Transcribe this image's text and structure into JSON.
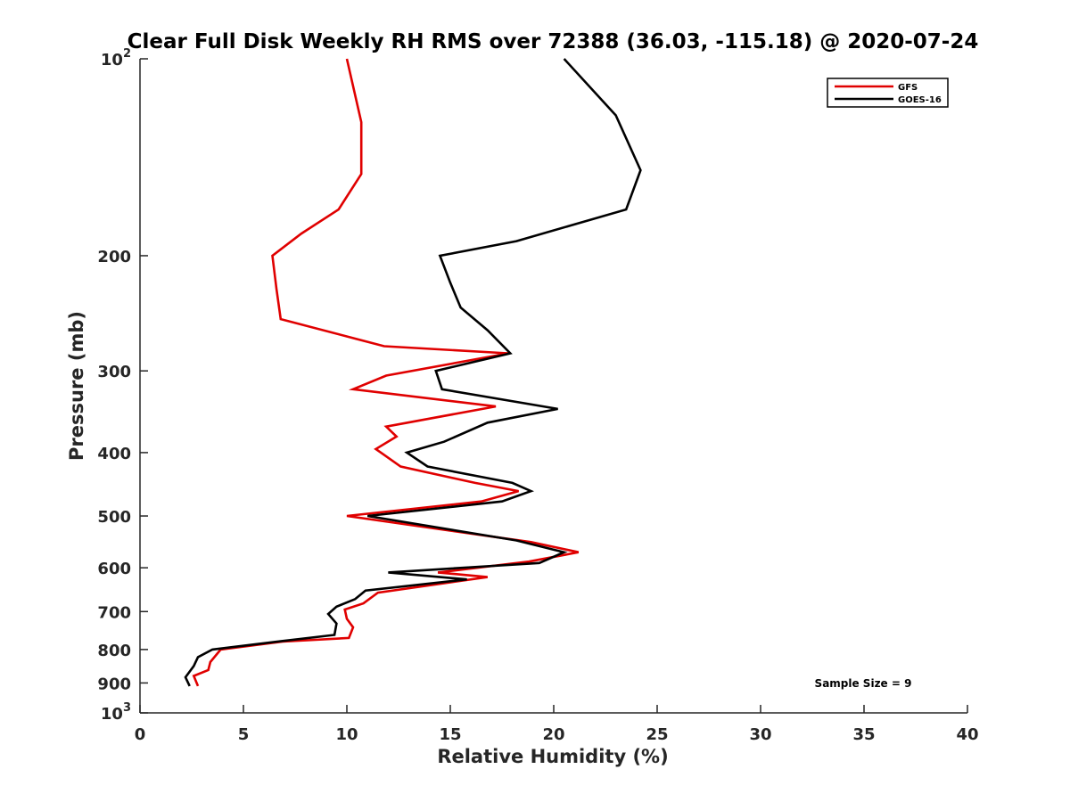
{
  "chart_data": {
    "type": "line",
    "title": "Clear Full Disk Weekly RH RMS over 72388 (36.03, -115.18) @ 2020-07-24",
    "xlabel": "Relative Humidity (%)",
    "ylabel": "Pressure (mb)",
    "xlim": [
      0,
      40
    ],
    "ylim": [
      100,
      1000
    ],
    "yscale": "log",
    "y_reversed": true,
    "x_ticks": [
      "0",
      "5",
      "10",
      "15",
      "20",
      "25",
      "30",
      "35",
      "40"
    ],
    "y_ticks": [
      {
        "value": 100,
        "label": "10",
        "sup": "2"
      },
      {
        "value": 200,
        "label": "200"
      },
      {
        "value": 300,
        "label": "300"
      },
      {
        "value": 400,
        "label": "400"
      },
      {
        "value": 500,
        "label": "500"
      },
      {
        "value": 600,
        "label": "600"
      },
      {
        "value": 700,
        "label": "700"
      },
      {
        "value": 800,
        "label": "800"
      },
      {
        "value": 900,
        "label": "900"
      },
      {
        "value": 1000,
        "label": "10",
        "sup": "3"
      }
    ],
    "legend_position": "top-right",
    "annotation": "Sample Size = 9",
    "series": [
      {
        "name": "GFS",
        "color": "#e00000",
        "points": [
          [
            10.0,
            100
          ],
          [
            10.7,
            125
          ],
          [
            10.7,
            150
          ],
          [
            9.6,
            170
          ],
          [
            7.8,
            185
          ],
          [
            6.4,
            200
          ],
          [
            6.6,
            225
          ],
          [
            6.8,
            250
          ],
          [
            11.8,
            275
          ],
          [
            17.8,
            282
          ],
          [
            11.9,
            305
          ],
          [
            10.3,
            320
          ],
          [
            17.2,
            340
          ],
          [
            11.9,
            365
          ],
          [
            12.4,
            378
          ],
          [
            11.4,
            395
          ],
          [
            12.6,
            420
          ],
          [
            16.2,
            445
          ],
          [
            18.3,
            458
          ],
          [
            16.5,
            475
          ],
          [
            10.0,
            500
          ],
          [
            18.9,
            548
          ],
          [
            21.2,
            568
          ],
          [
            18.8,
            587
          ],
          [
            14.4,
            610
          ],
          [
            16.8,
            620
          ],
          [
            11.5,
            655
          ],
          [
            10.8,
            680
          ],
          [
            9.9,
            695
          ],
          [
            10.0,
            718
          ],
          [
            10.3,
            740
          ],
          [
            10.1,
            768
          ],
          [
            6.9,
            778
          ],
          [
            3.9,
            800
          ],
          [
            3.4,
            836
          ],
          [
            3.3,
            860
          ],
          [
            2.6,
            878
          ],
          [
            2.8,
            910
          ]
        ]
      },
      {
        "name": "GOES-16",
        "color": "#000000",
        "points": [
          [
            20.5,
            100
          ],
          [
            23.0,
            122
          ],
          [
            24.2,
            148
          ],
          [
            23.5,
            170
          ],
          [
            18.2,
            190
          ],
          [
            14.5,
            200
          ],
          [
            15.0,
            220
          ],
          [
            15.5,
            240
          ],
          [
            16.8,
            260
          ],
          [
            17.9,
            282
          ],
          [
            14.3,
            300
          ],
          [
            14.6,
            320
          ],
          [
            20.2,
            343
          ],
          [
            16.8,
            360
          ],
          [
            14.7,
            385
          ],
          [
            12.9,
            400
          ],
          [
            13.9,
            420
          ],
          [
            18.0,
            445
          ],
          [
            18.9,
            458
          ],
          [
            17.5,
            475
          ],
          [
            11.0,
            500
          ],
          [
            18.2,
            545
          ],
          [
            20.5,
            568
          ],
          [
            19.3,
            590
          ],
          [
            12.0,
            610
          ],
          [
            15.8,
            625
          ],
          [
            10.9,
            650
          ],
          [
            10.4,
            670
          ],
          [
            9.5,
            688
          ],
          [
            9.1,
            706
          ],
          [
            9.5,
            730
          ],
          [
            9.4,
            760
          ],
          [
            6.8,
            777
          ],
          [
            3.5,
            800
          ],
          [
            2.8,
            822
          ],
          [
            2.6,
            848
          ],
          [
            2.2,
            882
          ],
          [
            2.4,
            910
          ]
        ]
      }
    ]
  }
}
